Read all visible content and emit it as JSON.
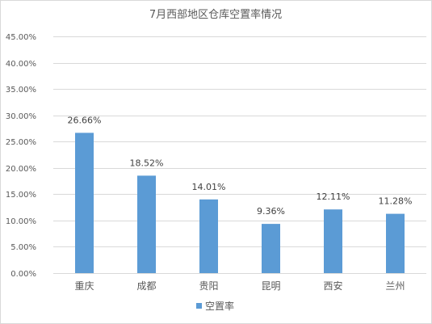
{
  "chart_data": {
    "type": "bar",
    "title": "7月西部地区仓库空置率情况",
    "categories": [
      "重庆",
      "成都",
      "贵阳",
      "昆明",
      "西安",
      "兰州"
    ],
    "series": [
      {
        "name": "空置率",
        "values": [
          26.66,
          18.52,
          14.01,
          9.36,
          12.11,
          11.28
        ],
        "labels": [
          "26.66%",
          "18.52%",
          "14.01%",
          "9.36%",
          "12.11%",
          "11.28%"
        ]
      }
    ],
    "yticks": [
      0,
      5,
      10,
      15,
      20,
      25,
      30,
      35,
      40,
      45
    ],
    "ytick_labels": [
      "0.00%",
      "5.00%",
      "10.00%",
      "15.00%",
      "20.00%",
      "25.00%",
      "30.00%",
      "35.00%",
      "40.00%",
      "45.00%"
    ],
    "ylim": [
      0,
      45
    ],
    "xlabel": "",
    "ylabel": "",
    "grid": true,
    "legend_position": "bottom",
    "bar_color": "#5b9bd5",
    "grid_color": "#d9d9d9"
  }
}
